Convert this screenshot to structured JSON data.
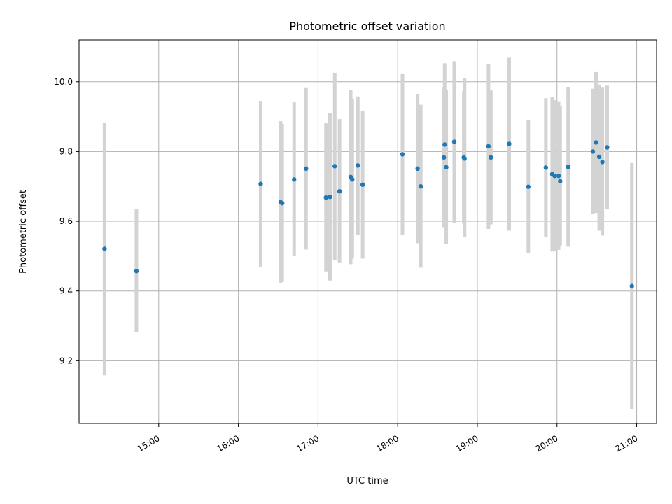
{
  "chart_data": {
    "type": "scatter",
    "title": "Photometric offset variation",
    "xlabel": "UTC time",
    "ylabel": "Photometric offset",
    "x_unit": "hours UTC",
    "xlim": [
      14.0,
      21.25
    ],
    "ylim": [
      9.02,
      10.12
    ],
    "xticks": [
      15,
      16,
      17,
      18,
      19,
      20,
      21
    ],
    "xtick_labels": [
      "15:00",
      "16:00",
      "17:00",
      "18:00",
      "19:00",
      "20:00",
      "21:00"
    ],
    "yticks": [
      9.2,
      9.4,
      9.6,
      9.8,
      10.0
    ],
    "ytick_labels": [
      "9.2",
      "9.4",
      "9.6",
      "9.8",
      "10.0"
    ],
    "grid": true,
    "marker_color": "#1f77b4",
    "errorbar_color": "#d3d3d3",
    "points": [
      {
        "x": 14.32,
        "y": 9.521,
        "lo": 9.158,
        "hi": 9.883
      },
      {
        "x": 14.72,
        "y": 9.457,
        "lo": 9.281,
        "hi": 9.635
      },
      {
        "x": 16.28,
        "y": 9.707,
        "lo": 9.469,
        "hi": 9.945
      },
      {
        "x": 16.53,
        "y": 9.655,
        "lo": 9.422,
        "hi": 9.887
      },
      {
        "x": 16.55,
        "y": 9.652,
        "lo": 9.426,
        "hi": 9.879
      },
      {
        "x": 16.7,
        "y": 9.72,
        "lo": 9.5,
        "hi": 9.941
      },
      {
        "x": 16.85,
        "y": 9.751,
        "lo": 9.519,
        "hi": 9.982
      },
      {
        "x": 17.1,
        "y": 9.668,
        "lo": 9.456,
        "hi": 9.881
      },
      {
        "x": 17.15,
        "y": 9.67,
        "lo": 9.43,
        "hi": 9.911
      },
      {
        "x": 17.21,
        "y": 9.758,
        "lo": 9.488,
        "hi": 10.026
      },
      {
        "x": 17.27,
        "y": 9.686,
        "lo": 9.48,
        "hi": 9.893
      },
      {
        "x": 17.41,
        "y": 9.727,
        "lo": 9.477,
        "hi": 9.976
      },
      {
        "x": 17.43,
        "y": 9.72,
        "lo": 9.493,
        "hi": 9.952
      },
      {
        "x": 17.5,
        "y": 9.76,
        "lo": 9.561,
        "hi": 9.958
      },
      {
        "x": 17.56,
        "y": 9.705,
        "lo": 9.493,
        "hi": 9.917
      },
      {
        "x": 18.06,
        "y": 9.792,
        "lo": 9.56,
        "hi": 10.022
      },
      {
        "x": 18.25,
        "y": 9.751,
        "lo": 9.537,
        "hi": 9.964
      },
      {
        "x": 18.29,
        "y": 9.7,
        "lo": 9.467,
        "hi": 9.934
      },
      {
        "x": 18.58,
        "y": 9.783,
        "lo": 9.583,
        "hi": 9.984
      },
      {
        "x": 18.59,
        "y": 9.82,
        "lo": 9.585,
        "hi": 10.053
      },
      {
        "x": 18.61,
        "y": 9.755,
        "lo": 9.535,
        "hi": 9.976
      },
      {
        "x": 18.71,
        "y": 9.828,
        "lo": 9.594,
        "hi": 10.059
      },
      {
        "x": 18.83,
        "y": 9.783,
        "lo": 9.593,
        "hi": 9.973
      },
      {
        "x": 18.84,
        "y": 9.78,
        "lo": 9.556,
        "hi": 10.01
      },
      {
        "x": 19.14,
        "y": 9.815,
        "lo": 9.578,
        "hi": 10.052
      },
      {
        "x": 19.17,
        "y": 9.783,
        "lo": 9.591,
        "hi": 9.975
      },
      {
        "x": 19.4,
        "y": 9.822,
        "lo": 9.573,
        "hi": 10.069
      },
      {
        "x": 19.64,
        "y": 9.699,
        "lo": 9.509,
        "hi": 9.89
      },
      {
        "x": 19.86,
        "y": 9.754,
        "lo": 9.555,
        "hi": 9.953
      },
      {
        "x": 19.94,
        "y": 9.735,
        "lo": 9.513,
        "hi": 9.957
      },
      {
        "x": 19.97,
        "y": 9.73,
        "lo": 9.514,
        "hi": 9.947
      },
      {
        "x": 20.02,
        "y": 9.73,
        "lo": 9.518,
        "hi": 9.944
      },
      {
        "x": 20.04,
        "y": 9.715,
        "lo": 9.53,
        "hi": 9.929
      },
      {
        "x": 20.14,
        "y": 9.756,
        "lo": 9.527,
        "hi": 9.985
      },
      {
        "x": 20.45,
        "y": 9.8,
        "lo": 9.622,
        "hi": 9.98
      },
      {
        "x": 20.49,
        "y": 9.826,
        "lo": 9.624,
        "hi": 10.028
      },
      {
        "x": 20.53,
        "y": 9.785,
        "lo": 9.573,
        "hi": 9.992
      },
      {
        "x": 20.57,
        "y": 9.77,
        "lo": 9.559,
        "hi": 9.983
      },
      {
        "x": 20.63,
        "y": 9.812,
        "lo": 9.634,
        "hi": 9.989
      },
      {
        "x": 20.94,
        "y": 9.414,
        "lo": 9.061,
        "hi": 9.767
      }
    ]
  }
}
